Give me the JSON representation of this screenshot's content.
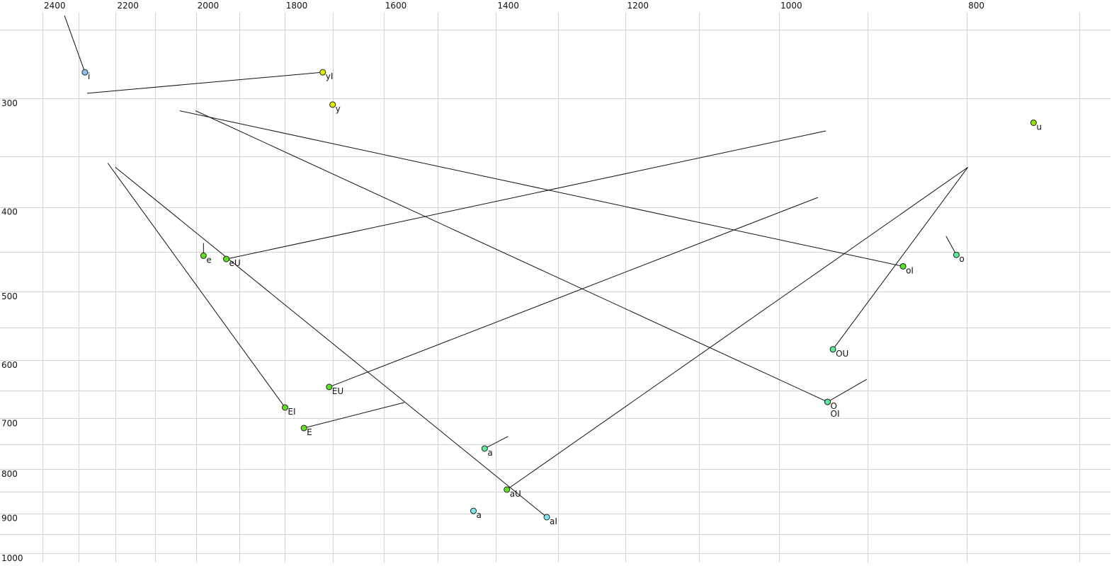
{
  "chart_data": {
    "type": "scatter",
    "title": "",
    "xlabel": "",
    "ylabel": "",
    "x_scale": "log",
    "y_scale": "log",
    "x_reversed": true,
    "x_axis_position": "top",
    "y_axis_position": "left",
    "xlim": [
      2520,
      690
    ],
    "ylim": [
      232,
      1030
    ],
    "grid": true,
    "x_gridlines": [
      700,
      800,
      900,
      1000,
      1100,
      1200,
      1300,
      1400,
      1500,
      1600,
      1700,
      1800,
      1900,
      2000,
      2100,
      2200,
      2300,
      2400
    ],
    "y_gridlines": [
      250,
      300,
      350,
      400,
      450,
      500,
      550,
      600,
      650,
      700,
      750,
      800,
      850,
      900,
      950,
      1000
    ],
    "x_ticks": [
      "2400",
      "2200",
      "2000",
      "1800",
      "1600",
      "1400",
      "1200",
      "1000",
      "800"
    ],
    "y_ticks": [
      "300",
      "400",
      "500",
      "600",
      "700",
      "800",
      "900",
      "1000"
    ],
    "colors": {
      "i": "#8ec0f0",
      "yellow": "#e4ef00",
      "lime": "#8ee600",
      "green": "#5ee21e",
      "teal": "#5ee69a",
      "cyan": "#7ee6f0",
      "faded_label": "#777788"
    },
    "points": [
      {
        "label": "i",
        "f2": 2282,
        "f1": 280,
        "color": "#8ec0f0",
        "tail": [
          2338,
          241
        ]
      },
      {
        "label": "yI",
        "f2": 1720,
        "f1": 280,
        "color": "#e4ef00",
        "tail": [
          2276,
          296
        ]
      },
      {
        "label": "y",
        "f2": 1700,
        "f1": 305,
        "color": "#e4ef00"
      },
      {
        "label": "u",
        "f2": 739,
        "f1": 320,
        "color": "#8ee600"
      },
      {
        "label": "e",
        "f2": 1982,
        "f1": 455,
        "color": "#5ee21e",
        "tail": [
          1982,
          440
        ]
      },
      {
        "label": "eU",
        "f2": 1929,
        "f1": 459,
        "color": "#5ee21e",
        "tail": [
          946,
          327
        ]
      },
      {
        "label": "oI",
        "f2": 863,
        "f1": 468,
        "color": "#5ee21e",
        "tail": [
          2039,
          310
        ]
      },
      {
        "label": "o",
        "f2": 810,
        "f1": 454,
        "color": "#5ee69a",
        "tail": [
          820,
          432
        ]
      },
      {
        "label": "OU",
        "f2": 938,
        "f1": 583,
        "color": "#5ee69a",
        "tail": [
          799,
          360
        ]
      },
      {
        "label": "O",
        "f2": 944,
        "f1": 670,
        "color": "#5ee69a",
        "tail": [
          901,
          631
        ]
      },
      {
        "label": "OI",
        "f2": 944,
        "f1": 670,
        "color": "#5ee69a",
        "tail": [
          2001,
          310
        ],
        "label_offset": "below"
      },
      {
        "label": "EU",
        "f2": 1707,
        "f1": 644,
        "color": "#5ee21e",
        "tail": [
          955,
          390
        ]
      },
      {
        "label": "EI",
        "f2": 1799,
        "f1": 680,
        "color": "#5ee21e",
        "tail": [
          2221,
          356
        ]
      },
      {
        "label": "E",
        "f2": 1759,
        "f1": 718,
        "color": "#5ee21e",
        "tail": [
          1561,
          671
        ]
      },
      {
        "label": "a",
        "f2": 1419,
        "f1": 758,
        "color": "#5ee69a",
        "tail": [
          1380,
          734
        ],
        "faded": true
      },
      {
        "label": "aU",
        "f2": 1382,
        "f1": 845,
        "color": "#5ee21e",
        "tail": [
          799,
          360
        ]
      },
      {
        "label": "a",
        "f2": 1438,
        "f1": 894,
        "color": "#7ee6f0"
      },
      {
        "label": "aI",
        "f2": 1318,
        "f1": 909,
        "color": "#7ee6f0",
        "tail": [
          2201,
          360
        ]
      }
    ]
  }
}
